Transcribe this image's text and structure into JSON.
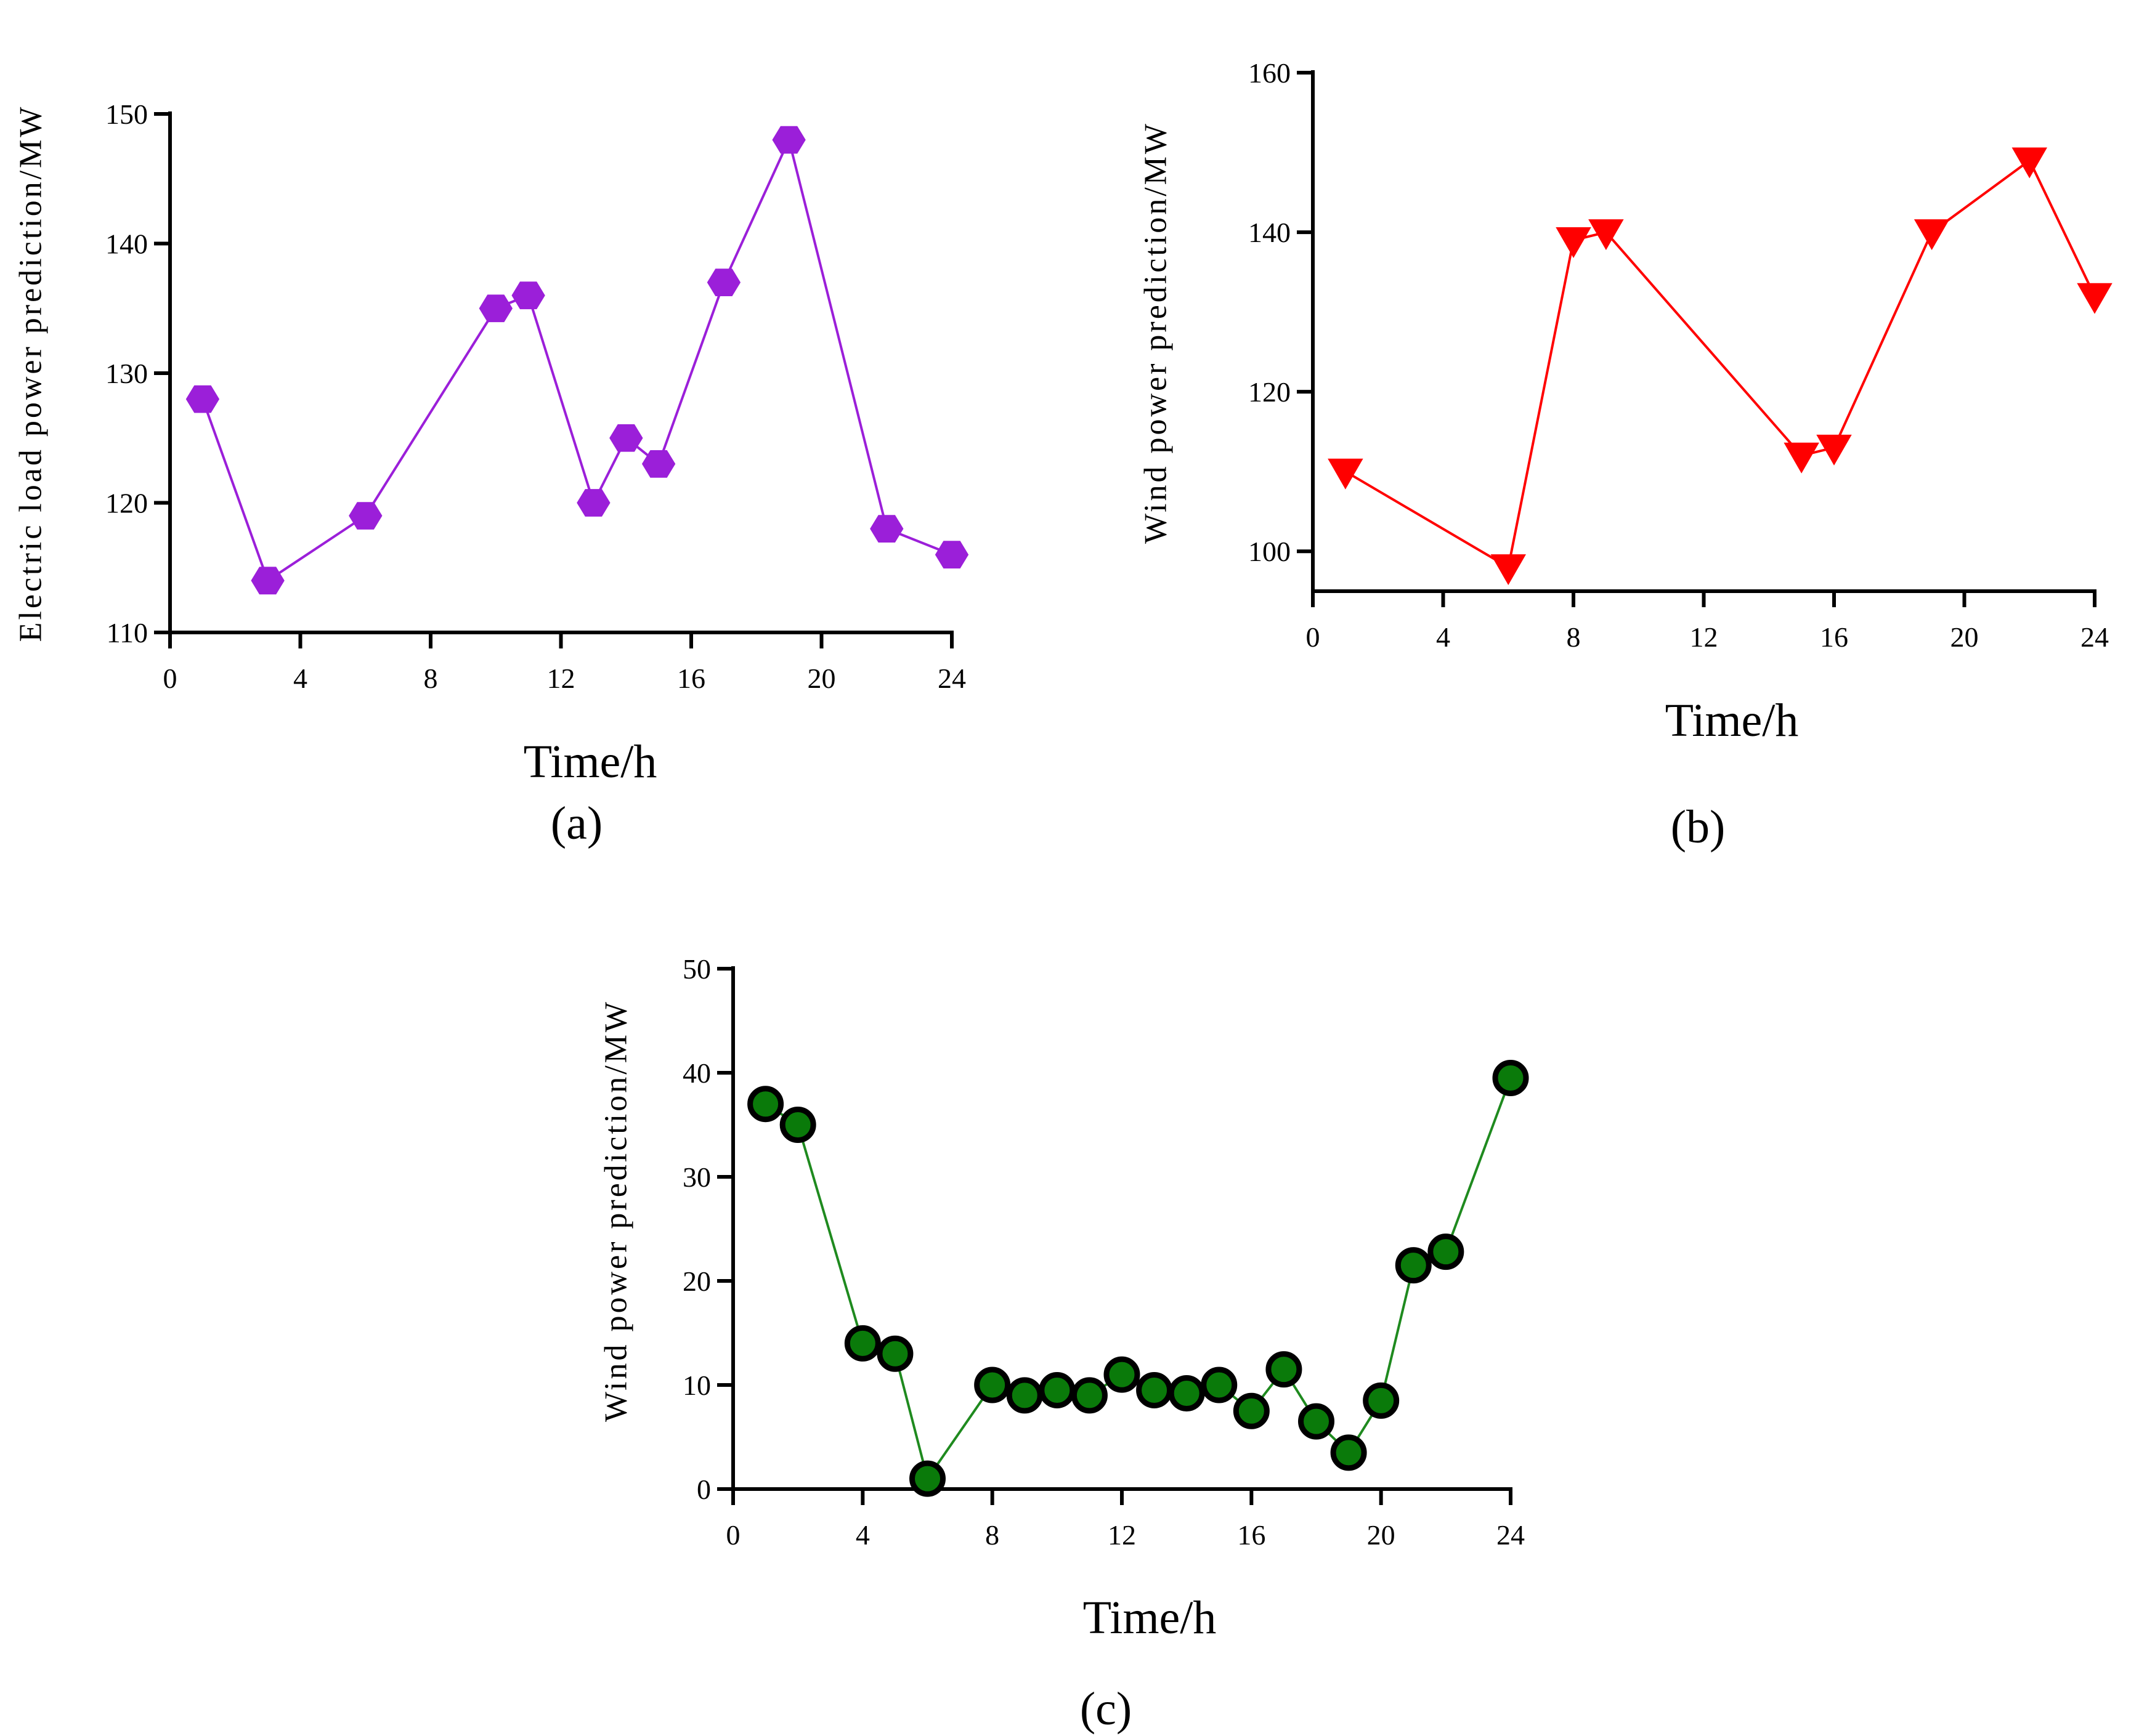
{
  "chart_data": [
    {
      "id": "a",
      "type": "line",
      "caption": "(a)",
      "xlabel": "Time/h",
      "ylabel": "Electric load power prediction/MW",
      "xlim": [
        0,
        24
      ],
      "ylim": [
        110,
        150
      ],
      "xticks": [
        "0",
        "4",
        "8",
        "12",
        "16",
        "20",
        "24"
      ],
      "yticks": [
        "110",
        "120",
        "130",
        "140",
        "150"
      ],
      "color": "#9b1fd9",
      "marker": "hexagon",
      "series": [
        {
          "name": "Electric load power prediction",
          "x": [
            1,
            3,
            6,
            10,
            11,
            13,
            14,
            15,
            17,
            19,
            22,
            24
          ],
          "y": [
            128,
            114,
            119,
            135,
            136,
            120,
            125,
            123,
            137,
            148,
            118,
            116
          ]
        }
      ]
    },
    {
      "id": "b",
      "type": "line",
      "caption": "(b)",
      "xlabel": "Time/h",
      "ylabel": "Wind power prediction/MW",
      "xlim": [
        0,
        24
      ],
      "ylim": [
        95,
        160
      ],
      "xticks": [
        "0",
        "4",
        "8",
        "12",
        "16",
        "20",
        "24"
      ],
      "yticks": [
        "100",
        "120",
        "140",
        "160"
      ],
      "color": "#ff0000",
      "marker": "triangle-down",
      "series": [
        {
          "name": "Wind power prediction",
          "x": [
            1,
            6,
            8,
            9,
            15,
            16,
            19,
            22,
            24
          ],
          "y": [
            110,
            98,
            139,
            140,
            112,
            113,
            140,
            149,
            132
          ]
        }
      ]
    },
    {
      "id": "c",
      "type": "line",
      "caption": "(c)",
      "xlabel": "Time/h",
      "ylabel": "Wind power prediction/MW",
      "xlim": [
        0,
        24
      ],
      "ylim": [
        0,
        50
      ],
      "xticks": [
        "0",
        "4",
        "8",
        "12",
        "16",
        "20",
        "24"
      ],
      "yticks": [
        "0",
        "10",
        "20",
        "30",
        "40",
        "50"
      ],
      "color": "#1f8a1f",
      "marker_fill": "#0a7a0a",
      "marker": "circle",
      "series": [
        {
          "name": "Wind power prediction",
          "x": [
            1,
            2,
            4,
            5,
            6,
            8,
            9,
            10,
            11,
            12,
            13,
            14,
            15,
            16,
            17,
            18,
            19,
            20,
            21,
            22,
            24
          ],
          "y": [
            37,
            35,
            14,
            13,
            1,
            10,
            9,
            9.5,
            9,
            11,
            9.5,
            9.2,
            10,
            7.5,
            11.5,
            6.5,
            3.5,
            8.5,
            21.5,
            22.8,
            39.5
          ]
        }
      ]
    }
  ]
}
